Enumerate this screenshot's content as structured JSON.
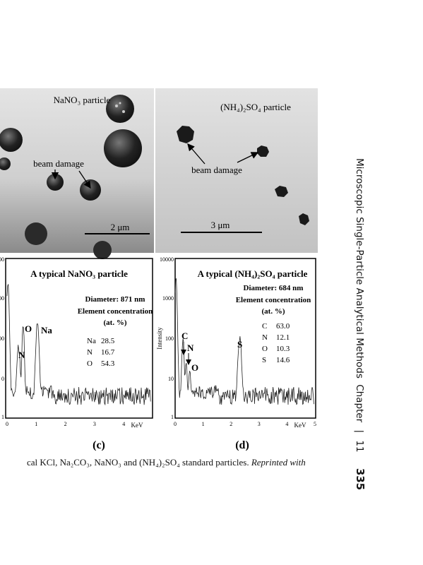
{
  "images": [
    {
      "title": "NaNO₃ particle",
      "annotation": "beam damage",
      "scale": "2 μm"
    },
    {
      "title": "(NH₄)₂SO₄ particle",
      "annotation": "beam damage",
      "scale": "3 μm"
    }
  ],
  "spectra": [
    {
      "title": "A typical NaNO₃ particle",
      "diameter": "Diameter: 871 nm",
      "concentration": "Element concentration",
      "unit": "(at. %)",
      "rows": [
        [
          "Na",
          "28.5"
        ],
        [
          "N",
          "16.7"
        ],
        [
          "O",
          "54.3"
        ]
      ],
      "peaks": [
        "N",
        "O",
        "Na"
      ],
      "yticks": [
        "00",
        "00",
        "00",
        "0",
        "1"
      ],
      "xticks": [
        "0",
        "1",
        "2",
        "3",
        "4"
      ],
      "xunit": "KeV",
      "label": "(c)"
    },
    {
      "title": "A typical (NH₄)₂SO₄ particle",
      "diameter": "Diameter: 684 nm",
      "concentration": "Element concentration",
      "unit": "(at. %)",
      "rows": [
        [
          "C",
          "63.0"
        ],
        [
          "N",
          "12.1"
        ],
        [
          "O",
          "10.3"
        ],
        [
          "S",
          "14.6"
        ]
      ],
      "peaks": [
        "C",
        "N",
        "O",
        "S"
      ],
      "ylabel": "Intensity",
      "yticks": [
        "10000",
        "1000",
        "100",
        "10",
        "1"
      ],
      "xticks": [
        "0",
        "1",
        "2",
        "3",
        "4",
        "5"
      ],
      "xunit": "KeV",
      "label": "(d)"
    }
  ],
  "caption": {
    "text": "cal KCl, Na₂CO₃, NaNO₃ and (NH₄)₂SO₄ standard particles.",
    "italic": "Reprinted with"
  },
  "header": {
    "title": "Microscopic Single-Particle Analytical Methods",
    "chapter": "Chapter",
    "number": "11",
    "page": "335"
  }
}
